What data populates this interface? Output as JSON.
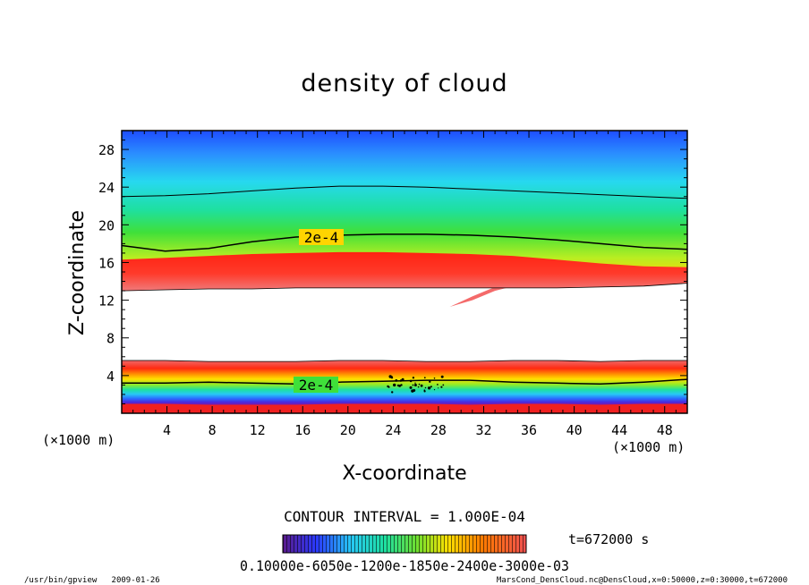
{
  "chart_data": {
    "type": "heatmap",
    "title": "density of cloud",
    "xlabel": "X-coordinate",
    "ylabel": "Z-coordinate",
    "x_unit": "(×1000 m)",
    "y_unit": "(×1000 m)",
    "xlim": [
      0,
      50
    ],
    "ylim": [
      0,
      30
    ],
    "x_ticks": [
      "4",
      "8",
      "12",
      "16",
      "20",
      "24",
      "28",
      "32",
      "36",
      "40",
      "44",
      "48"
    ],
    "y_ticks": [
      "4",
      "8",
      "12",
      "16",
      "20",
      "24",
      "28"
    ],
    "contour_labels": [
      "2e-4",
      "2e-4"
    ],
    "contour_interval_text": "CONTOUR INTERVAL = 1.000E-04",
    "time_text": "t=672000 s",
    "colorbar_labels_text": "0.10000e-6050e-1200e-1850e-2400e-3000e-03",
    "upper_layer": {
      "base_z": [
        13.0,
        13.1,
        13.2,
        13.2,
        13.3,
        13.3,
        13.3,
        13.3,
        13.3,
        13.3,
        13.3,
        13.4,
        13.5,
        13.8
      ],
      "peak_z": [
        15.0,
        15.2,
        15.4,
        15.6,
        15.7,
        15.8,
        15.8,
        15.7,
        15.6,
        15.4,
        15.0,
        14.6,
        14.3,
        14.2
      ],
      "contour_2e4_z": [
        17.8,
        17.2,
        17.5,
        18.2,
        18.7,
        18.9,
        19.0,
        19.0,
        18.9,
        18.7,
        18.4,
        18.0,
        17.6,
        17.4
      ],
      "contour_1e4_z": [
        23.0,
        23.1,
        23.3,
        23.6,
        23.9,
        24.1,
        24.1,
        24.0,
        23.8,
        23.6,
        23.4,
        23.2,
        23.0,
        22.8
      ]
    },
    "lower_layer": {
      "top_z": [
        5.6,
        5.6,
        5.5,
        5.5,
        5.5,
        5.6,
        5.6,
        5.5,
        5.5,
        5.6,
        5.6,
        5.5,
        5.6,
        5.6
      ],
      "contour_2e4_z": [
        3.2,
        3.2,
        3.3,
        3.2,
        3.1,
        3.3,
        3.4,
        3.5,
        3.5,
        3.3,
        3.2,
        3.1,
        3.3,
        3.6
      ],
      "bottom_z": [
        1.0,
        1.0,
        0.9,
        0.9,
        0.9,
        1.0,
        1.0,
        1.0,
        0.9,
        1.0,
        1.0,
        0.9,
        1.0,
        1.0
      ]
    }
  },
  "footer": {
    "left": "/usr/bin/gpview   2009-01-26",
    "right": "MarsCond_DensCloud.nc@DensCloud,x=0:50000,z=0:30000,t=672000"
  }
}
